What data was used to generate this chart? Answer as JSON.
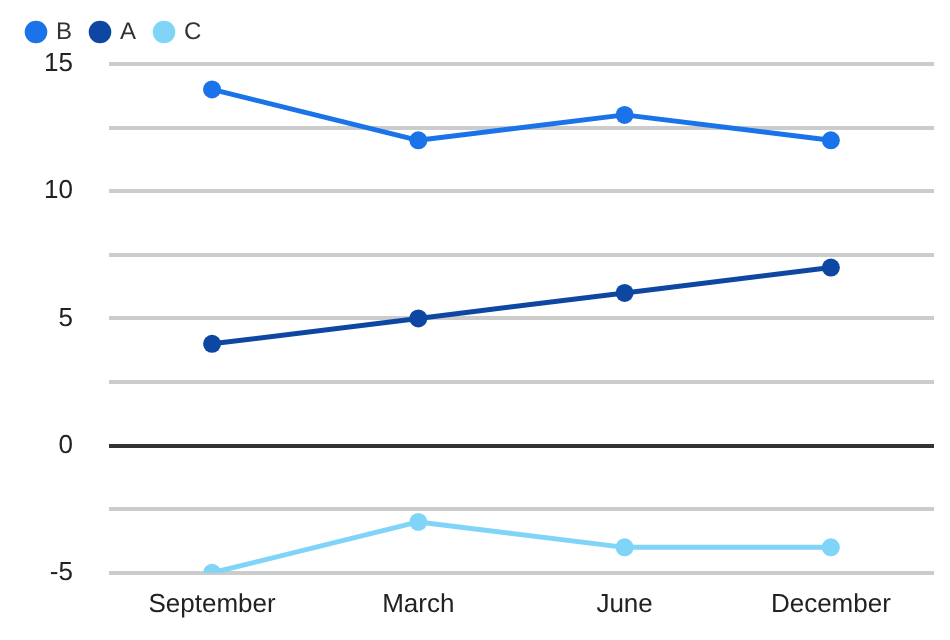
{
  "chart_data": {
    "type": "line",
    "categories": [
      "September",
      "March",
      "June",
      "December"
    ],
    "series": [
      {
        "name": "B",
        "color": "#1a73e8",
        "values": [
          14,
          12,
          13,
          12
        ]
      },
      {
        "name": "A",
        "color": "#0d47a1",
        "values": [
          4,
          5,
          6,
          7
        ]
      },
      {
        "name": "C",
        "color": "#80d4f7",
        "values": [
          -5,
          -3,
          -4,
          -4
        ]
      }
    ],
    "ylim": [
      -5,
      15
    ],
    "yticks": [
      -5,
      {
        "value": -2.5,
        "label": null
      },
      0,
      {
        "value": 2.5,
        "label": null
      },
      5,
      {
        "value": 7.5,
        "label": null
      },
      10,
      {
        "value": 12.5,
        "label": null
      },
      15
    ],
    "grid": "y",
    "legend": "top left",
    "marker": "circle",
    "line_style": "solid"
  }
}
